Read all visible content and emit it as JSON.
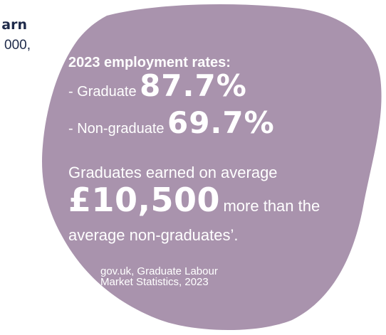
{
  "left_snippet": {
    "bold_text": "arn",
    "regular_text": "000,"
  },
  "blob": {
    "color": "#a993ad",
    "heading": "2023 employment rates:",
    "graduate": {
      "label": "- Graduate",
      "value": "87.7%"
    },
    "non_graduate": {
      "label": "- Non-graduate",
      "value": "69.7%"
    },
    "earned_line": "Graduates earned on average",
    "amount": "£10,500",
    "amount_suffix": "more than the",
    "avg_line": "average non-graduates’.",
    "source_line1": "gov.uk, Graduate Labour",
    "source_line2": "Market Statistics, 2023"
  },
  "colors": {
    "text_dark": "#1e2a4a",
    "blob_text": "#ffffff",
    "background": "#ffffff"
  }
}
